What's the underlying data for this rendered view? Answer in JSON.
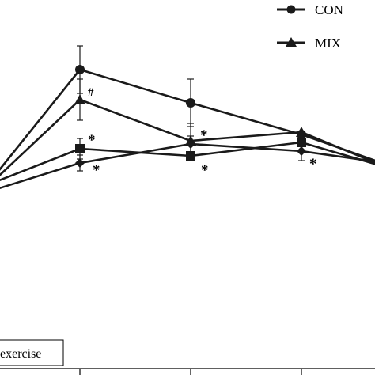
{
  "chart_data": {
    "type": "line",
    "x": [
      0,
      1,
      2,
      3,
      4
    ],
    "series": [
      {
        "name": "CON",
        "marker": "circle",
        "values": [
          215,
          88,
          130,
          170,
          205
        ],
        "err": [
          0,
          30,
          30,
          0,
          0
        ],
        "annotations": [
          null,
          null,
          null,
          null,
          null
        ]
      },
      {
        "name": "MIX",
        "marker": "triangle",
        "values": [
          222,
          126,
          178,
          167,
          208
        ],
        "err": [
          0,
          26,
          22,
          0,
          0
        ],
        "annotations": [
          null,
          "#",
          null,
          null,
          null
        ]
      },
      {
        "name": "",
        "marker": "square",
        "values": [
          228,
          188,
          197,
          180,
          209
        ],
        "err": [
          0,
          13,
          0,
          0,
          0
        ],
        "annotations": [
          null,
          "*",
          "*",
          null,
          null
        ]
      },
      {
        "name": "",
        "marker": "diamond",
        "values": [
          238,
          206,
          182,
          191,
          205
        ],
        "err": [
          0,
          10,
          10,
          12,
          0
        ],
        "annotations": [
          null,
          "*",
          "*",
          "*",
          null
        ]
      }
    ],
    "yscale": "pixel-read",
    "legend": {
      "placement": "top-right",
      "entries": [
        "CON",
        "MIX"
      ]
    },
    "box_label": "exercise",
    "color": "#1a1a1a"
  }
}
